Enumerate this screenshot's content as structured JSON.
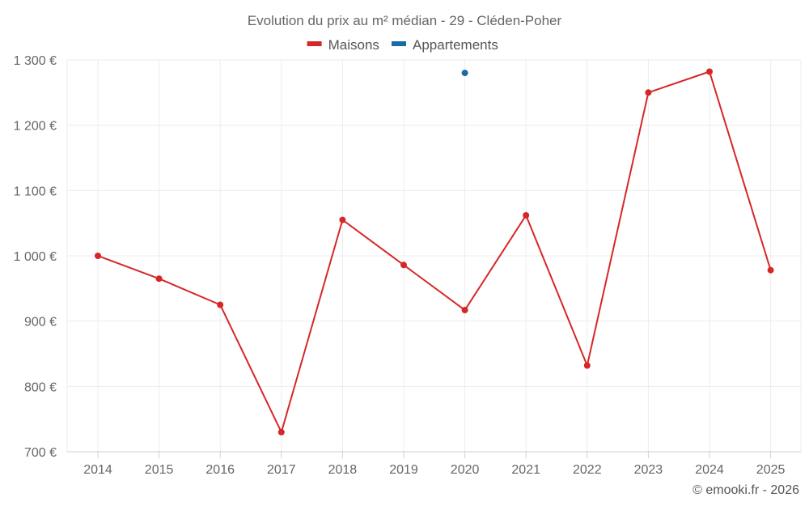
{
  "chart_data": {
    "type": "line",
    "title": "Evolution du prix au m² médian - 29 - Cléden-Poher",
    "x": [
      "2014",
      "2015",
      "2016",
      "2017",
      "2018",
      "2019",
      "2020",
      "2021",
      "2022",
      "2023",
      "2024",
      "2025"
    ],
    "y_ticks": [
      "700 €",
      "800 €",
      "900 €",
      "1 000 €",
      "1 100 €",
      "1 200 €",
      "1 300 €"
    ],
    "y_tick_values": [
      700,
      800,
      900,
      1000,
      1100,
      1200,
      1300
    ],
    "ylim": [
      700,
      1300
    ],
    "xlabel": "",
    "ylabel": "",
    "grid": true,
    "legend_position": "top-center",
    "series": [
      {
        "name": "Maisons",
        "color": "#d62728",
        "values": [
          1000,
          965,
          925,
          730,
          1055,
          986,
          917,
          1062,
          832,
          1250,
          1282,
          978
        ]
      },
      {
        "name": "Appartements",
        "color": "#1a6aa3",
        "values": [
          null,
          null,
          null,
          null,
          null,
          null,
          1280,
          null,
          null,
          null,
          null,
          null
        ]
      }
    ],
    "credit": "© emooki.fr - 2026"
  }
}
